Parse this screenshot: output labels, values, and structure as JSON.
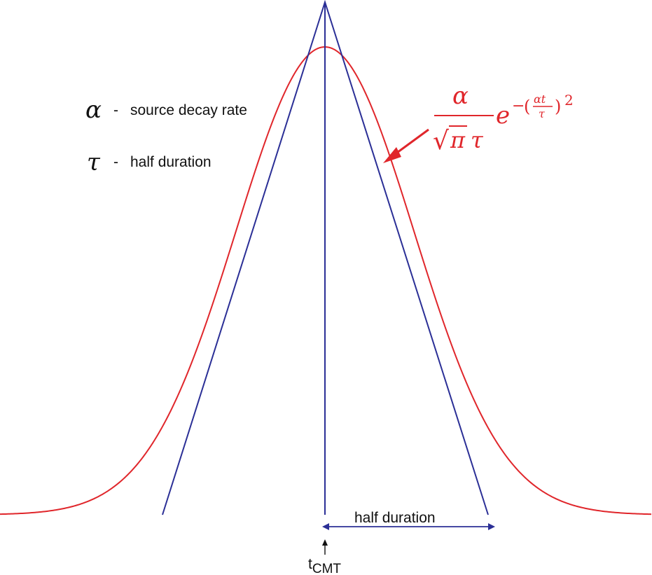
{
  "legend": {
    "alpha": {
      "symbol": "α",
      "dash": "-",
      "text": "source decay rate"
    },
    "tau": {
      "symbol": "τ",
      "dash": "-",
      "text": "half duration"
    }
  },
  "formula": {
    "numerator": "α",
    "sqrt_sign": "√",
    "pi": "π",
    "tau": "τ",
    "base": "e",
    "minus": "−",
    "open_paren": "(",
    "inner_num": "αt",
    "inner_den": "τ",
    "close_paren": ")",
    "exponent": "2"
  },
  "annotations": {
    "half_duration": "half duration",
    "t_main": "t",
    "t_sub": "CMT"
  },
  "colors": {
    "gaussian": "#e0262b",
    "triangle": "#2b2f96",
    "text": "#111111"
  }
}
